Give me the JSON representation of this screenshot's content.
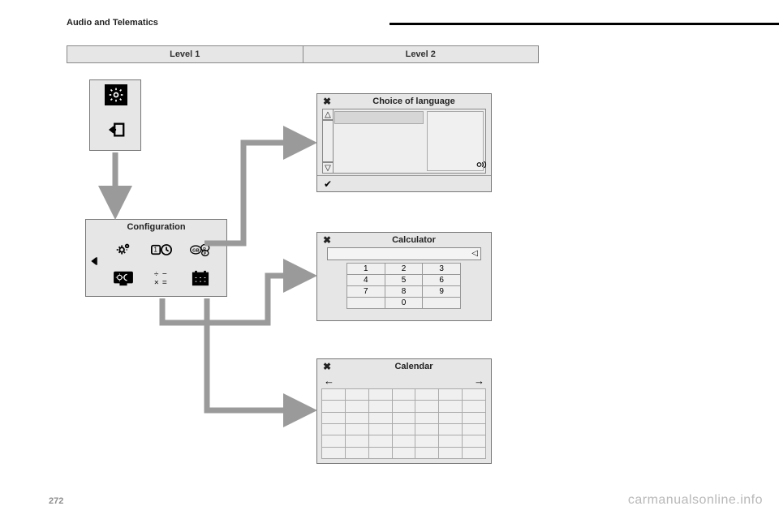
{
  "header": {
    "section": "Audio and Telematics"
  },
  "levels": {
    "col1": "Level 1",
    "col2": "Level 2"
  },
  "gear": {
    "icon": "gear-icon",
    "enter": "enter-icon"
  },
  "config": {
    "title": "Configuration",
    "back_icon": "back-icon",
    "icons": [
      "gear-icon",
      "clock-icon",
      "language-icon",
      "display-icon",
      "calculator-icon",
      "calendar-icon"
    ],
    "selected_index": 2
  },
  "lang_panel": {
    "close": "✖",
    "title": "Choice of language",
    "ok": "✔",
    "scroll_up": "△",
    "scroll_down": "▽"
  },
  "calc_panel": {
    "close": "✖",
    "title": "Calculator",
    "backspace": "◁",
    "keys": [
      [
        "1",
        "2",
        "3"
      ],
      [
        "4",
        "5",
        "6"
      ],
      [
        "7",
        "8",
        "9"
      ],
      [
        "",
        "0",
        ""
      ]
    ]
  },
  "cal_panel": {
    "close": "✖",
    "title": "Calendar",
    "prev": "←",
    "next": "→",
    "cols": 7,
    "rows": 6
  },
  "style": {
    "panel_bg": "#e6e6e6",
    "border": "#777777",
    "arrow_color": "#9a9a9a",
    "arrow_width": 7
  },
  "footer": {
    "page": "272",
    "watermark": "carmanualsonline.info"
  }
}
